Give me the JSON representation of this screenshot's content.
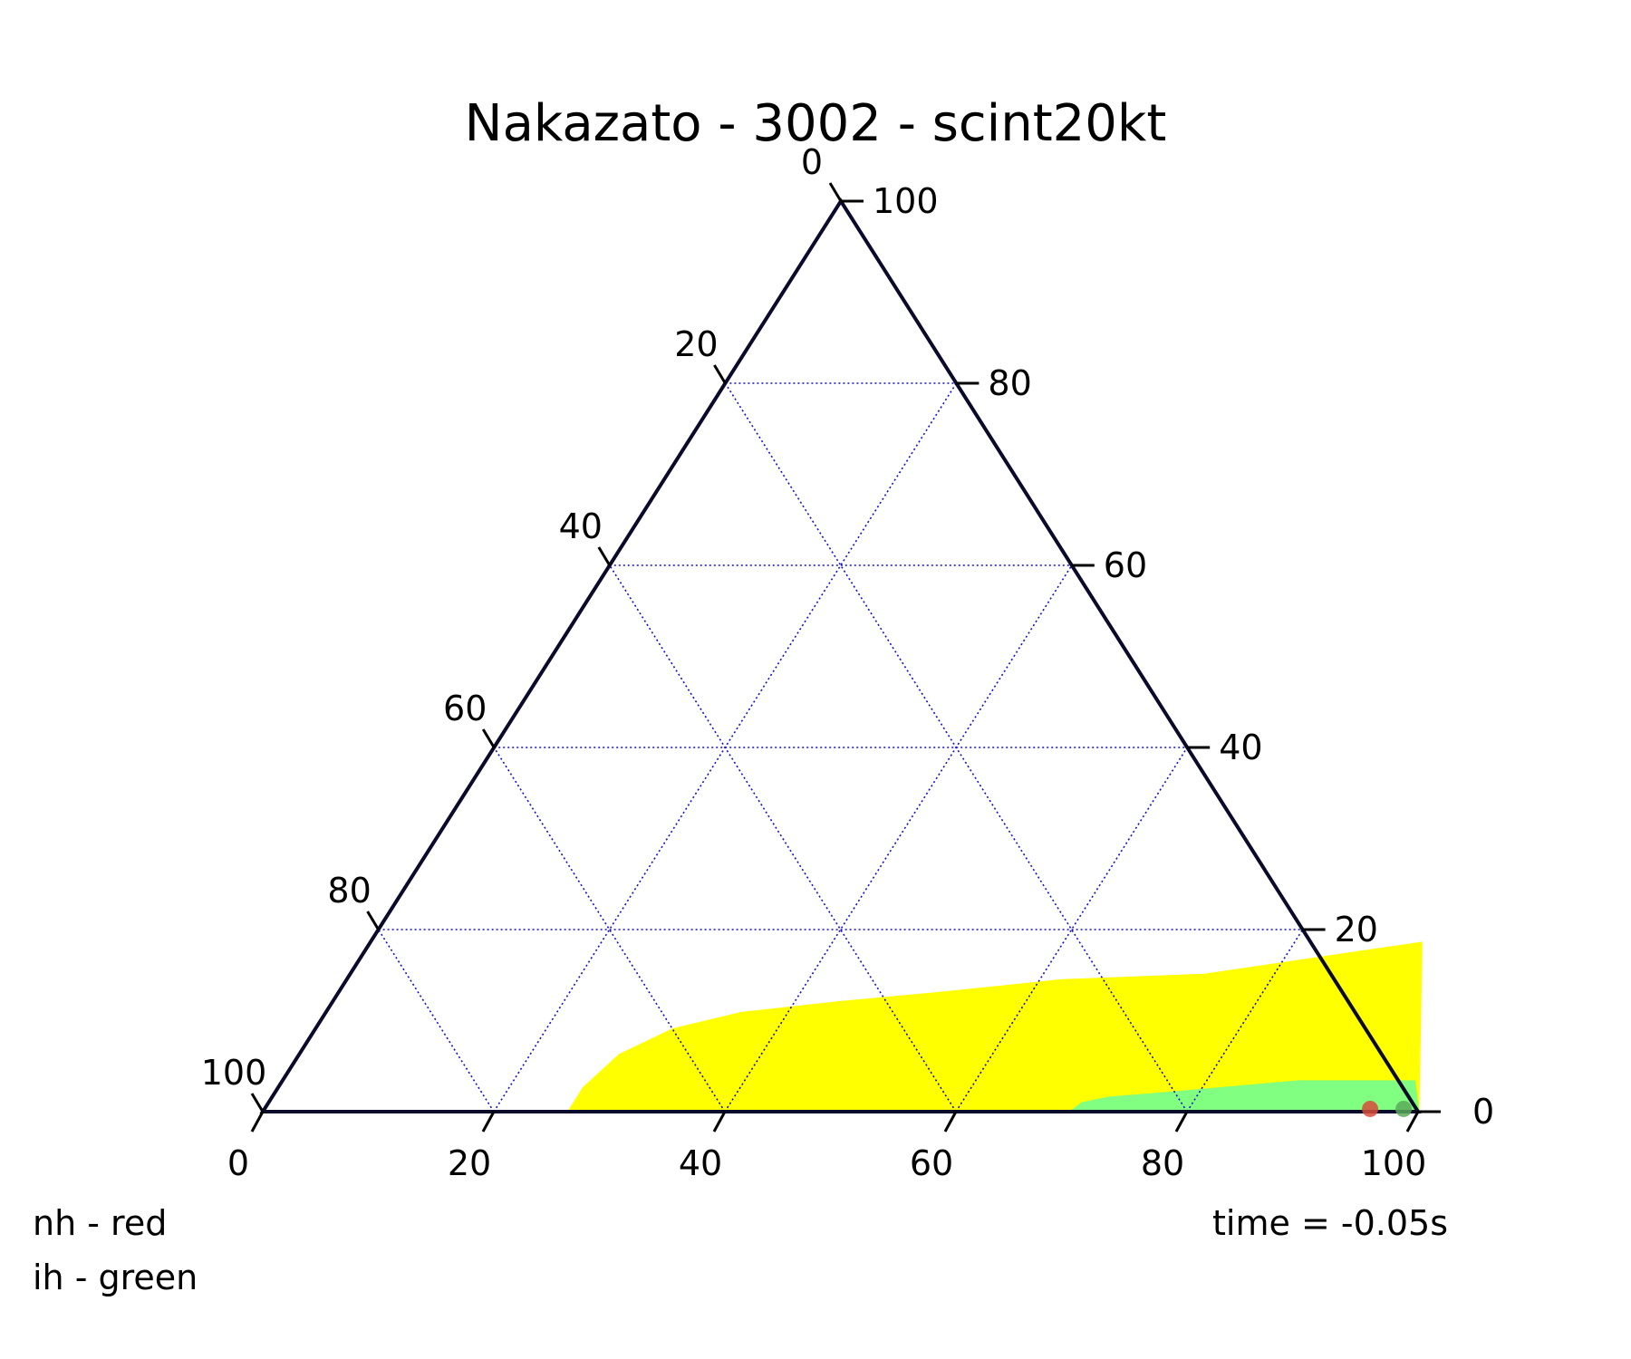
{
  "chart_data": {
    "type": "scatter",
    "subtype": "ternary",
    "title": "Nakazato - 3002 - scint20kt",
    "ticks": [
      0,
      20,
      40,
      60,
      80,
      100
    ],
    "tick_labels": [
      "0",
      "20",
      "40",
      "60",
      "80",
      "100"
    ],
    "grid": true,
    "regions": [
      {
        "color": "#ffff00",
        "boundary": [
          [
            26.5,
            0.0
          ],
          [
            26.5,
            2.6
          ],
          [
            27.8,
            6.2
          ],
          [
            31.0,
            9.0
          ],
          [
            36.0,
            10.8
          ],
          [
            44.0,
            12.0
          ],
          [
            52.0,
            13.0
          ],
          [
            62.0,
            14.4
          ],
          [
            74.0,
            15.0
          ],
          [
            91.0,
            18.5
          ],
          [
            100.0,
            0.0
          ]
        ]
      },
      {
        "color": "#80ff80",
        "boundary": [
          [
            70.0,
            0.0
          ],
          [
            70.5,
            0.9
          ],
          [
            72.5,
            1.5
          ],
          [
            78.0,
            2.1
          ],
          [
            88.0,
            3.3
          ],
          [
            98.0,
            3.3
          ],
          [
            100.0,
            0.0
          ]
        ]
      }
    ],
    "points": [
      {
        "color": "#d94c3c",
        "x": 95.7,
        "y": 0.3
      },
      {
        "color": "#5aaa5a",
        "x": 98.6,
        "y": 0.3
      }
    ],
    "annotations": {
      "legend_nh": "nh - red",
      "legend_ih": "ih - green",
      "time": "time = -0.05s"
    }
  }
}
